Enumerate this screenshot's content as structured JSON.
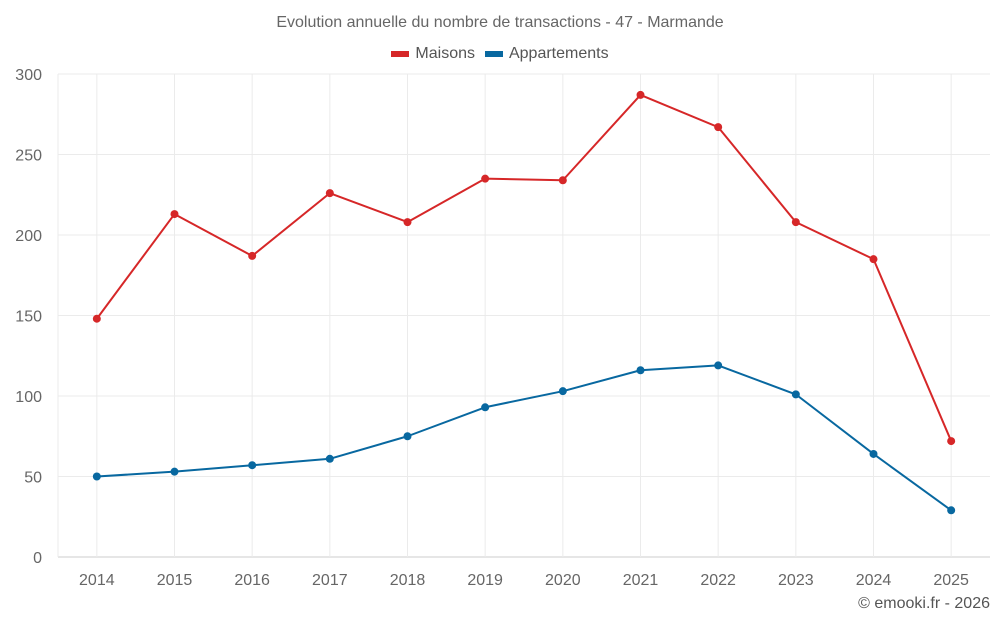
{
  "chart_data": {
    "type": "line",
    "title": "Evolution annuelle du nombre de transactions - 47 - Marmande",
    "xlabel": "",
    "ylabel": "",
    "categories": [
      "2014",
      "2015",
      "2016",
      "2017",
      "2018",
      "2019",
      "2020",
      "2021",
      "2022",
      "2023",
      "2024",
      "2025"
    ],
    "ylim": [
      0,
      300
    ],
    "yticks": [
      0,
      50,
      100,
      150,
      200,
      250,
      300
    ],
    "grid": true,
    "legend_position": "top-center",
    "series": [
      {
        "name": "Maisons",
        "color": "#d62728",
        "values": [
          148,
          213,
          187,
          226,
          208,
          235,
          234,
          287,
          267,
          208,
          185,
          72
        ]
      },
      {
        "name": "Appartements",
        "color": "#0868a0",
        "values": [
          50,
          53,
          57,
          61,
          75,
          93,
          103,
          116,
          119,
          101,
          64,
          29
        ]
      }
    ]
  },
  "credit": "© emooki.fr - 2026"
}
